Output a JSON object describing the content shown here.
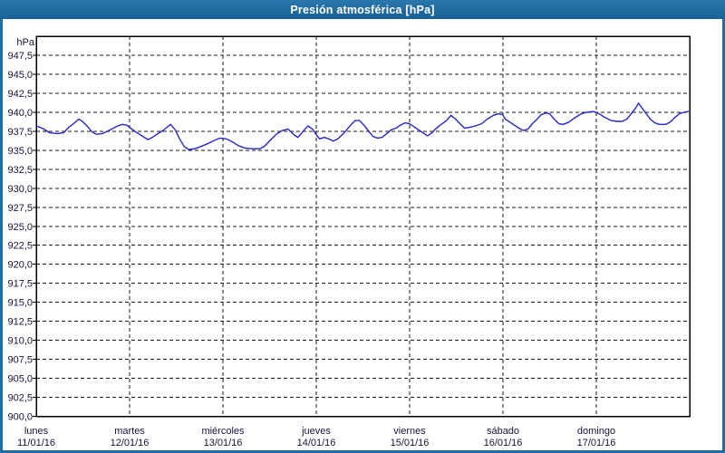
{
  "title_bar": {
    "title": "Presión atmosférica [hPa]"
  },
  "colors": {
    "titlebar_blue": "#1e6da4",
    "frame_blue": "#1e6da4",
    "line_blue": "#2626c9",
    "grid_black": "#1a1a1a",
    "label_color": "#14143c",
    "plot_background": "#ffffff"
  },
  "chart_data": {
    "type": "line",
    "title": "Presión atmosférica [hPa]",
    "unit_label": "hPa",
    "ylabel": "hPa",
    "ylim": [
      900,
      950
    ],
    "ytick_step": 2.5,
    "grid": "dashed",
    "legend": "none",
    "ytick_labels": [
      "947,5",
      "945,0",
      "942,5",
      "940,0",
      "937,5",
      "935,0",
      "932,5",
      "930,0",
      "927,5",
      "925,0",
      "922,5",
      "920,0",
      "917,5",
      "915,0",
      "912,5",
      "910,0",
      "907,5",
      "905,0",
      "902,5",
      "900,0"
    ],
    "ytick_values": [
      947.5,
      945.0,
      942.5,
      940.0,
      937.5,
      935.0,
      932.5,
      930.0,
      927.5,
      925.0,
      922.5,
      920.0,
      917.5,
      915.0,
      912.5,
      910.0,
      907.5,
      905.0,
      902.5,
      900.0
    ],
    "days": [
      {
        "name": "lunes",
        "date": "11/01/16"
      },
      {
        "name": "martes",
        "date": "12/01/16"
      },
      {
        "name": "miércoles",
        "date": "13/01/16"
      },
      {
        "name": "jueves",
        "date": "14/01/16"
      },
      {
        "name": "viernes",
        "date": "15/01/16"
      },
      {
        "name": "sábado",
        "date": "16/01/16"
      },
      {
        "name": "domingo",
        "date": "17/01/16"
      }
    ],
    "series": [
      {
        "name": "Presión atmosférica",
        "color": "#2626c9",
        "points": [
          [
            0.0,
            938.2
          ],
          [
            0.065,
            937.9
          ],
          [
            0.146,
            937.3
          ],
          [
            0.226,
            937.2
          ],
          [
            0.291,
            937.3
          ],
          [
            0.356,
            938.1
          ],
          [
            0.42,
            938.7
          ],
          [
            0.453,
            939.1
          ],
          [
            0.485,
            938.9
          ],
          [
            0.55,
            938.1
          ],
          [
            0.6,
            937.4
          ],
          [
            0.647,
            937.1
          ],
          [
            0.711,
            937.2
          ],
          [
            0.793,
            937.7
          ],
          [
            0.873,
            938.2
          ],
          [
            0.922,
            938.4
          ],
          [
            0.97,
            938.3
          ],
          [
            1.002,
            938.0
          ],
          [
            1.067,
            937.4
          ],
          [
            1.132,
            936.9
          ],
          [
            1.196,
            936.4
          ],
          [
            1.245,
            936.7
          ],
          [
            1.293,
            937.1
          ],
          [
            1.358,
            937.6
          ],
          [
            1.439,
            938.4
          ],
          [
            1.487,
            937.7
          ],
          [
            1.536,
            936.5
          ],
          [
            1.584,
            935.5
          ],
          [
            1.633,
            935.1
          ],
          [
            1.698,
            935.2
          ],
          [
            1.763,
            935.5
          ],
          [
            1.843,
            935.9
          ],
          [
            1.924,
            936.4
          ],
          [
            1.972,
            936.6
          ],
          [
            2.037,
            936.5
          ],
          [
            2.102,
            936.1
          ],
          [
            2.166,
            935.6
          ],
          [
            2.231,
            935.3
          ],
          [
            2.312,
            935.2
          ],
          [
            2.393,
            935.2
          ],
          [
            2.442,
            935.5
          ],
          [
            2.506,
            936.3
          ],
          [
            2.571,
            937.1
          ],
          [
            2.636,
            937.6
          ],
          [
            2.697,
            937.8
          ],
          [
            2.765,
            937.0
          ],
          [
            2.804,
            936.7
          ],
          [
            2.852,
            937.4
          ],
          [
            2.911,
            938.2
          ],
          [
            2.959,
            937.8
          ],
          [
            3.008,
            936.9
          ],
          [
            3.037,
            936.5
          ],
          [
            3.085,
            936.7
          ],
          [
            3.134,
            936.5
          ],
          [
            3.182,
            936.2
          ],
          [
            3.231,
            936.5
          ],
          [
            3.299,
            937.3
          ],
          [
            3.367,
            938.3
          ],
          [
            3.415,
            938.9
          ],
          [
            3.464,
            938.9
          ],
          [
            3.512,
            938.3
          ],
          [
            3.561,
            937.5
          ],
          [
            3.609,
            936.8
          ],
          [
            3.658,
            936.6
          ],
          [
            3.706,
            936.7
          ],
          [
            3.755,
            937.2
          ],
          [
            3.803,
            937.7
          ],
          [
            3.852,
            937.9
          ],
          [
            3.9,
            938.3
          ],
          [
            3.949,
            938.6
          ],
          [
            3.997,
            938.5
          ],
          [
            4.046,
            938.1
          ],
          [
            4.094,
            937.7
          ],
          [
            4.143,
            937.3
          ],
          [
            4.191,
            936.9
          ],
          [
            4.24,
            937.3
          ],
          [
            4.269,
            937.7
          ],
          [
            4.337,
            938.4
          ],
          [
            4.395,
            938.9
          ],
          [
            4.443,
            939.6
          ],
          [
            4.492,
            939.1
          ],
          [
            4.54,
            938.5
          ],
          [
            4.589,
            937.9
          ],
          [
            4.637,
            938.0
          ],
          [
            4.705,
            938.2
          ],
          [
            4.773,
            938.5
          ],
          [
            4.831,
            939.1
          ],
          [
            4.899,
            939.6
          ],
          [
            4.948,
            939.8
          ],
          [
            4.996,
            939.7
          ],
          [
            5.025,
            939.1
          ],
          [
            5.074,
            938.7
          ],
          [
            5.122,
            938.3
          ],
          [
            5.171,
            937.9
          ],
          [
            5.219,
            937.6
          ],
          [
            5.268,
            937.8
          ],
          [
            5.316,
            938.5
          ],
          [
            5.365,
            939.1
          ],
          [
            5.413,
            939.7
          ],
          [
            5.462,
            939.9
          ],
          [
            5.501,
            939.8
          ],
          [
            5.549,
            939.1
          ],
          [
            5.598,
            938.5
          ],
          [
            5.646,
            938.4
          ],
          [
            5.705,
            938.7
          ],
          [
            5.772,
            939.3
          ],
          [
            5.84,
            939.8
          ],
          [
            5.899,
            940.0
          ],
          [
            5.967,
            940.1
          ],
          [
            5.996,
            940.0
          ],
          [
            6.044,
            939.7
          ],
          [
            6.093,
            939.3
          ],
          [
            6.161,
            938.9
          ],
          [
            6.229,
            938.8
          ],
          [
            6.277,
            938.8
          ],
          [
            6.326,
            939.1
          ],
          [
            6.374,
            939.8
          ],
          [
            6.423,
            940.6
          ],
          [
            6.452,
            941.2
          ],
          [
            6.481,
            940.7
          ],
          [
            6.529,
            939.9
          ],
          [
            6.578,
            939.1
          ],
          [
            6.626,
            938.6
          ],
          [
            6.675,
            938.4
          ],
          [
            6.743,
            938.4
          ],
          [
            6.791,
            938.7
          ],
          [
            6.84,
            939.3
          ],
          [
            6.888,
            939.8
          ],
          [
            6.937,
            940.0
          ],
          [
            6.985,
            940.1
          ]
        ]
      }
    ]
  }
}
